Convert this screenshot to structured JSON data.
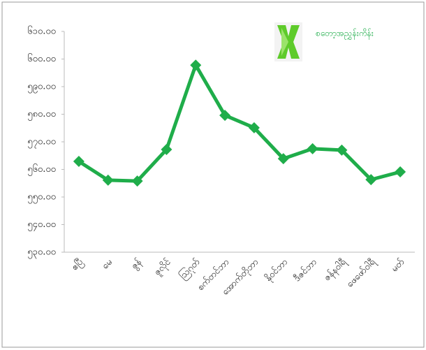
{
  "chart_data": {
    "type": "line",
    "categories": [
      "ဧပြီ",
      "မေ",
      "ဇွန်",
      "ဇူလိုင်",
      "ဩဂုတ်",
      "စက်တင်ဘာ",
      "အောက်တိုဘာ",
      "နိုဝင်ဘာ",
      "ဒီဇင်ဘာ",
      "ဇန်နဝါရီ",
      "ဖေဖော်ဝါရီ",
      "မတ်"
    ],
    "series": [
      {
        "name": "စတော့အညွှန်းကိန်း",
        "color": "#1fad4a",
        "values": [
          562.9,
          556.1,
          555.8,
          567.2,
          597.8,
          579.6,
          575.1,
          563.9,
          567.5,
          567.0,
          556.3,
          559.1
        ]
      }
    ],
    "ylim": [
      530,
      610
    ],
    "yticks": [
      {
        "value": 530,
        "label": "၅၃၀.၀၀"
      },
      {
        "value": 540,
        "label": "၅၄၀.၀၀"
      },
      {
        "value": 550,
        "label": "၅၅၀.၀၀"
      },
      {
        "value": 560,
        "label": "၅၆၀.၀၀"
      },
      {
        "value": 570,
        "label": "၅၇၀.၀၀"
      },
      {
        "value": 580,
        "label": "၅၈၀.၀၀"
      },
      {
        "value": 590,
        "label": "၅၉၀.၀၀"
      },
      {
        "value": 600,
        "label": "၆၀၀.၀၀"
      },
      {
        "value": 610,
        "label": "၆၁၀.၀၀"
      }
    ],
    "grid": false,
    "legend": "top-right"
  }
}
